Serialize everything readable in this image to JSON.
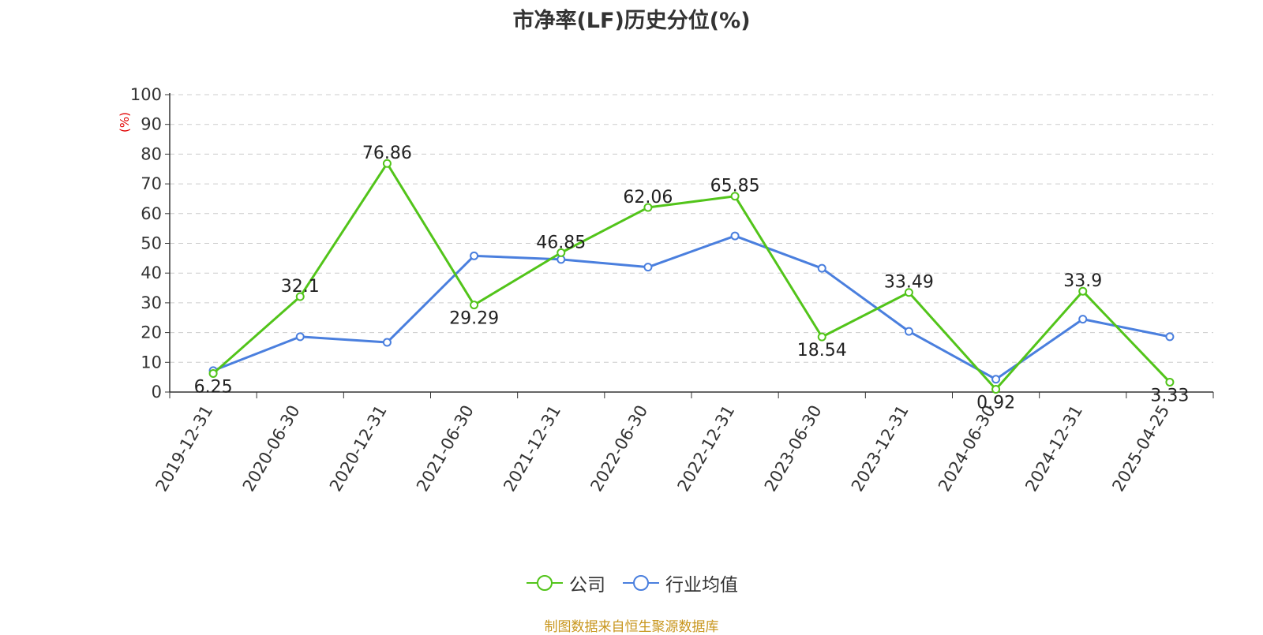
{
  "chart_data": {
    "type": "line",
    "title": "市净率(LF)历史分位(%)",
    "ylabel": "(%)",
    "xlabel": "",
    "ylim": [
      0,
      100
    ],
    "yticks": [
      0,
      10,
      20,
      30,
      40,
      50,
      60,
      70,
      80,
      90,
      100
    ],
    "categories": [
      "2019-12-31",
      "2020-06-30",
      "2020-12-31",
      "2021-06-30",
      "2021-12-31",
      "2022-06-30",
      "2022-12-31",
      "2023-06-30",
      "2023-12-31",
      "2024-06-30",
      "2024-12-31",
      "2025-04-25"
    ],
    "grid": true,
    "legend_position": "bottom",
    "series": [
      {
        "name": "公司",
        "color": "#52c41a",
        "show_labels": true,
        "values": [
          6.25,
          32.1,
          76.86,
          29.29,
          46.85,
          62.06,
          65.85,
          18.54,
          33.49,
          0.92,
          33.9,
          3.33
        ]
      },
      {
        "name": "行业均值",
        "color": "#4a7fde",
        "show_labels": false,
        "values": [
          7.2,
          18.6,
          16.7,
          45.8,
          44.6,
          42.0,
          52.5,
          41.6,
          20.4,
          4.3,
          24.5,
          18.6
        ]
      }
    ],
    "source": "制图数据来自恒生聚源数据库"
  }
}
